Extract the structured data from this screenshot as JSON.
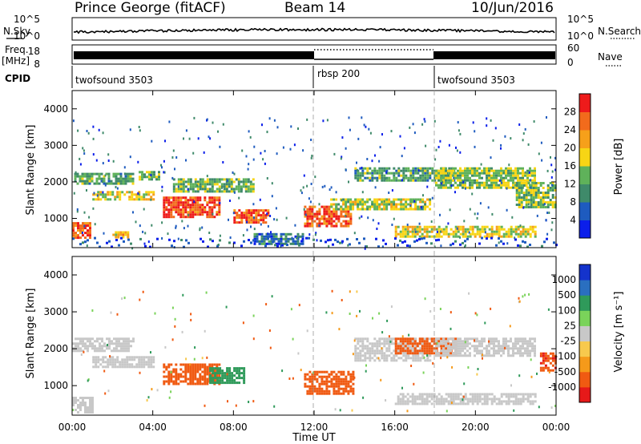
{
  "header": {
    "station": "Prince George (fitACF)",
    "beam": "Beam 14",
    "date": "10/Jun/2016"
  },
  "labels": {
    "nsky": "N.Sky",
    "nsearch": "N.Search",
    "freq": "Freq.",
    "freq_unit": "[MHz]",
    "nave": "Nave",
    "cpid": "CPID",
    "log_top": "10^5",
    "log_bot": "10^0",
    "freq_hi": "18",
    "freq_lo": "8",
    "nave_hi": "60",
    "nave_lo": "0"
  },
  "cpid_segments": [
    {
      "name": "twofsound 3503",
      "start": 0,
      "end": 12
    },
    {
      "name": "rbsp 200",
      "start": 12,
      "end": 18
    },
    {
      "name": "twofsound 3503",
      "start": 18,
      "end": 24
    }
  ],
  "colors": {
    "power": [
      "#0b1eea",
      "#1e5bbf",
      "#3f8a6a",
      "#5fb25a",
      "#f7d515",
      "#f6a01a",
      "#f26b1c",
      "#ee1b1b"
    ],
    "velocity": [
      "#e61919",
      "#f05a12",
      "#f59a1a",
      "#f7c94d",
      "#c8c8c8",
      "#7ad35a",
      "#2f9a5a",
      "#2a6fc0",
      "#1433cc"
    ]
  },
  "chart_data": [
    {
      "type": "heatmap",
      "quantity": "Power",
      "xlabel": "",
      "ylabel": "Slant Range [km]",
      "xlim": [
        0,
        24
      ],
      "ylim": [
        200,
        4500
      ],
      "yticks": [
        "1000",
        "2000",
        "3000",
        "4000"
      ],
      "colorbar": {
        "label": "Power [dB]",
        "range": [
          0,
          32
        ],
        "tick_labels": [
          "4",
          "8",
          "12",
          "16",
          "20",
          "24",
          "28"
        ]
      },
      "regions": [
        {
          "t0": 0.0,
          "t1": 0.9,
          "r0": 500,
          "r1": 900,
          "dB": 26
        },
        {
          "t0": 0.1,
          "t1": 3.0,
          "r0": 1950,
          "r1": 2250,
          "dB": 12
        },
        {
          "t0": 1.0,
          "t1": 4.0,
          "r0": 1500,
          "r1": 1750,
          "dB": 18
        },
        {
          "t0": 2.0,
          "t1": 2.8,
          "r0": 500,
          "r1": 650,
          "dB": 20
        },
        {
          "t0": 3.3,
          "t1": 4.3,
          "r0": 2050,
          "r1": 2300,
          "dB": 13
        },
        {
          "t0": 4.5,
          "t1": 7.3,
          "r0": 1050,
          "r1": 1600,
          "dB": 28
        },
        {
          "t0": 5.0,
          "t1": 9.0,
          "r0": 1750,
          "r1": 2100,
          "dB": 13
        },
        {
          "t0": 8.0,
          "t1": 9.7,
          "r0": 900,
          "r1": 1250,
          "dB": 27
        },
        {
          "t0": 9.0,
          "t1": 11.5,
          "r0": 300,
          "r1": 600,
          "dB": 8
        },
        {
          "t0": 11.5,
          "t1": 13.8,
          "r0": 800,
          "r1": 1350,
          "dB": 27
        },
        {
          "t0": 12.8,
          "t1": 17.8,
          "r0": 1250,
          "r1": 1550,
          "dB": 16
        },
        {
          "t0": 14.0,
          "t1": 19.0,
          "r0": 2050,
          "r1": 2400,
          "dB": 12
        },
        {
          "t0": 16.0,
          "t1": 23.0,
          "r0": 500,
          "r1": 800,
          "dB": 18
        },
        {
          "t0": 18.0,
          "t1": 23.0,
          "r0": 1850,
          "r1": 2400,
          "dB": 15
        },
        {
          "t0": 22.0,
          "t1": 24.0,
          "r0": 1300,
          "r1": 2000,
          "dB": 14
        }
      ]
    },
    {
      "type": "heatmap",
      "quantity": "Velocity",
      "xlabel": "Time UT",
      "ylabel": "Slant Range [km]",
      "xlim": [
        0,
        24
      ],
      "ylim": [
        200,
        4500
      ],
      "xticks": [
        "00:00",
        "04:00",
        "08:00",
        "12:00",
        "16:00",
        "20:00",
        "00:00"
      ],
      "yticks": [
        "1000",
        "2000",
        "3000",
        "4000"
      ],
      "colorbar": {
        "label": "Velocity [m s⁻¹]",
        "tick_labels": [
          "1000",
          "500",
          "100",
          "25",
          "-25",
          "-100",
          "-500",
          "-1000"
        ]
      },
      "regions": [
        {
          "t0": 0.0,
          "t1": 3.0,
          "r0": 1950,
          "r1": 2300,
          "v": 0
        },
        {
          "t0": 1.0,
          "t1": 4.0,
          "r0": 1500,
          "r1": 1800,
          "v": 0
        },
        {
          "t0": 0.0,
          "t1": 1.0,
          "r0": 300,
          "r1": 700,
          "v": 0
        },
        {
          "t0": 4.5,
          "t1": 7.3,
          "r0": 1050,
          "r1": 1600,
          "v": -300
        },
        {
          "t0": 6.8,
          "t1": 8.5,
          "r0": 1100,
          "r1": 1500,
          "v": 200
        },
        {
          "t0": 11.5,
          "t1": 14.0,
          "r0": 800,
          "r1": 1400,
          "v": -300
        },
        {
          "t0": 14.0,
          "t1": 17.8,
          "r0": 1700,
          "r1": 2300,
          "v": 0
        },
        {
          "t0": 16.0,
          "t1": 19.0,
          "r0": 1900,
          "r1": 2300,
          "v": -250
        },
        {
          "t0": 18.0,
          "t1": 23.0,
          "r0": 1800,
          "r1": 2300,
          "v": 0
        },
        {
          "t0": 16.0,
          "t1": 23.0,
          "r0": 500,
          "r1": 800,
          "v": 0
        },
        {
          "t0": 23.2,
          "t1": 24.0,
          "r0": 1400,
          "r1": 1900,
          "v": -400
        }
      ]
    }
  ]
}
